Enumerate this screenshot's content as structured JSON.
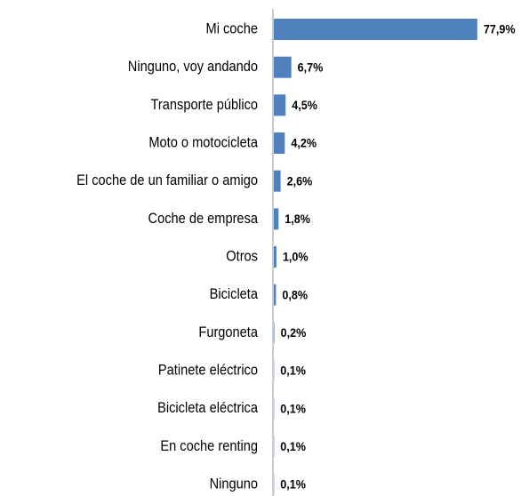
{
  "chart_data": {
    "type": "bar",
    "orientation": "horizontal",
    "categories": [
      "Mi coche",
      "Ninguno, voy andando",
      "Transporte público",
      "Moto o motocicleta",
      "El coche de un familiar o amigo",
      "Coche de empresa",
      "Otros",
      "Bicicleta",
      "Furgoneta",
      "Patinete eléctrico",
      "Bicicleta eléctrica",
      "En coche renting",
      "Ninguno"
    ],
    "values": [
      77.9,
      6.7,
      4.5,
      4.2,
      2.6,
      1.8,
      1.0,
      0.8,
      0.2,
      0.1,
      0.1,
      0.1,
      0.1
    ],
    "value_labels": [
      "77,9%",
      "6,7%",
      "4,5%",
      "4,2%",
      "2,6%",
      "1,8%",
      "1,0%",
      "0,8%",
      "0,2%",
      "0,1%",
      "0,1%",
      "0,1%",
      "0,1%"
    ],
    "color": "#4f81bd",
    "xlim": [
      0,
      80
    ]
  }
}
